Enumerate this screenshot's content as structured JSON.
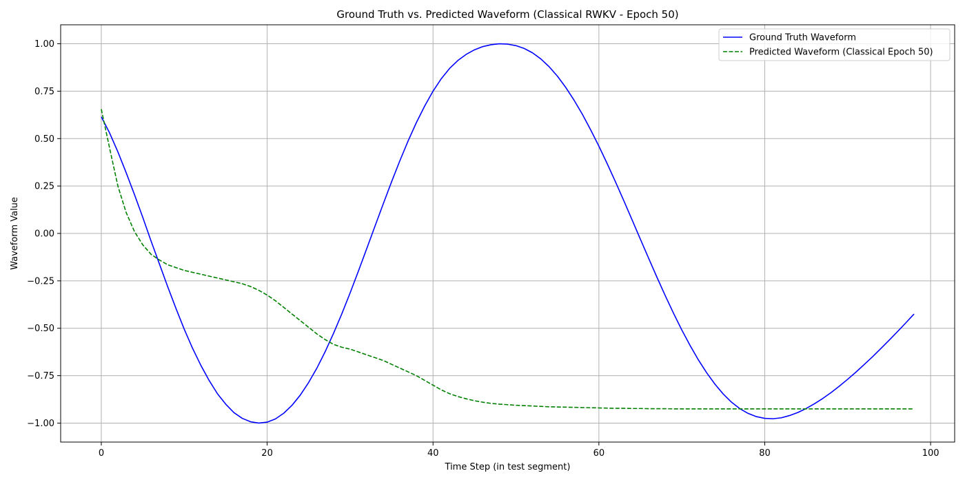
{
  "chart_data": {
    "type": "line",
    "title": "Ground Truth vs. Predicted Waveform (Classical RWKV - Epoch 50)",
    "xlabel": "Time Step (in test segment)",
    "ylabel": "Waveform Value",
    "xlim": [
      -4.9,
      102.9
    ],
    "ylim": [
      -1.1,
      1.1
    ],
    "xticks": [
      0,
      20,
      40,
      60,
      80,
      100
    ],
    "xtick_labels": [
      "0",
      "20",
      "40",
      "60",
      "80",
      "100"
    ],
    "yticks": [
      1.0,
      0.75,
      0.5,
      0.25,
      0.0,
      -0.25,
      -0.5,
      -0.75,
      -1.0
    ],
    "ytick_labels": [
      "1.00",
      "0.75",
      "0.50",
      "0.25",
      "0.00",
      "−0.25",
      "−0.50",
      "−0.75",
      "−1.00"
    ],
    "grid": true,
    "legend_position": "top-right",
    "series": [
      {
        "name": "Ground Truth Waveform",
        "color": "#0000ff",
        "style": "solid",
        "x_start": 0,
        "x_step": 1,
        "values": [
          0.615,
          0.53,
          0.43,
          0.32,
          0.205,
          0.085,
          -0.04,
          -0.16,
          -0.28,
          -0.395,
          -0.505,
          -0.605,
          -0.695,
          -0.775,
          -0.845,
          -0.9,
          -0.945,
          -0.975,
          -0.993,
          -1.0,
          -0.995,
          -0.978,
          -0.948,
          -0.906,
          -0.852,
          -0.786,
          -0.71,
          -0.623,
          -0.527,
          -0.424,
          -0.314,
          -0.199,
          -0.081,
          0.038,
          0.156,
          0.272,
          0.383,
          0.488,
          0.585,
          0.672,
          0.75,
          0.816,
          0.87,
          0.912,
          0.944,
          0.968,
          0.985,
          0.995,
          1.0,
          0.998,
          0.99,
          0.975,
          0.952,
          0.92,
          0.879,
          0.829,
          0.77,
          0.703,
          0.629,
          0.547,
          0.46,
          0.368,
          0.272,
          0.173,
          0.072,
          -0.03,
          -0.131,
          -0.231,
          -0.328,
          -0.421,
          -0.509,
          -0.591,
          -0.667,
          -0.735,
          -0.795,
          -0.847,
          -0.89,
          -0.924,
          -0.949,
          -0.966,
          -0.975,
          -0.977,
          -0.972,
          -0.96,
          -0.944,
          -0.923,
          -0.898,
          -0.87,
          -0.839,
          -0.805,
          -0.769,
          -0.731,
          -0.691,
          -0.65,
          -0.607,
          -0.563,
          -0.518,
          -0.472,
          -0.425
        ]
      },
      {
        "name": "Predicted Waveform (Classical Epoch 50)",
        "color": "#008000",
        "style": "dashed",
        "x_start": 0,
        "x_step": 1,
        "values": [
          0.655,
          0.45,
          0.25,
          0.11,
          0.01,
          -0.06,
          -0.11,
          -0.14,
          -0.165,
          -0.18,
          -0.195,
          -0.205,
          -0.215,
          -0.225,
          -0.235,
          -0.245,
          -0.255,
          -0.265,
          -0.28,
          -0.3,
          -0.325,
          -0.355,
          -0.39,
          -0.425,
          -0.46,
          -0.495,
          -0.53,
          -0.56,
          -0.585,
          -0.6,
          -0.61,
          -0.625,
          -0.64,
          -0.655,
          -0.67,
          -0.69,
          -0.71,
          -0.73,
          -0.75,
          -0.775,
          -0.8,
          -0.825,
          -0.845,
          -0.86,
          -0.872,
          -0.882,
          -0.89,
          -0.896,
          -0.9,
          -0.903,
          -0.906,
          -0.908,
          -0.91,
          -0.912,
          -0.914,
          -0.915,
          -0.916,
          -0.917,
          -0.918,
          -0.919,
          -0.92,
          -0.921,
          -0.922,
          -0.922,
          -0.923,
          -0.923,
          -0.924,
          -0.924,
          -0.924,
          -0.925,
          -0.925,
          -0.925,
          -0.925,
          -0.925,
          -0.925,
          -0.925,
          -0.925,
          -0.925,
          -0.925,
          -0.925,
          -0.925,
          -0.925,
          -0.925,
          -0.925,
          -0.925,
          -0.925,
          -0.925,
          -0.925,
          -0.925,
          -0.925,
          -0.925,
          -0.925,
          -0.925,
          -0.925,
          -0.925,
          -0.925,
          -0.925,
          -0.925,
          -0.925
        ]
      }
    ]
  }
}
